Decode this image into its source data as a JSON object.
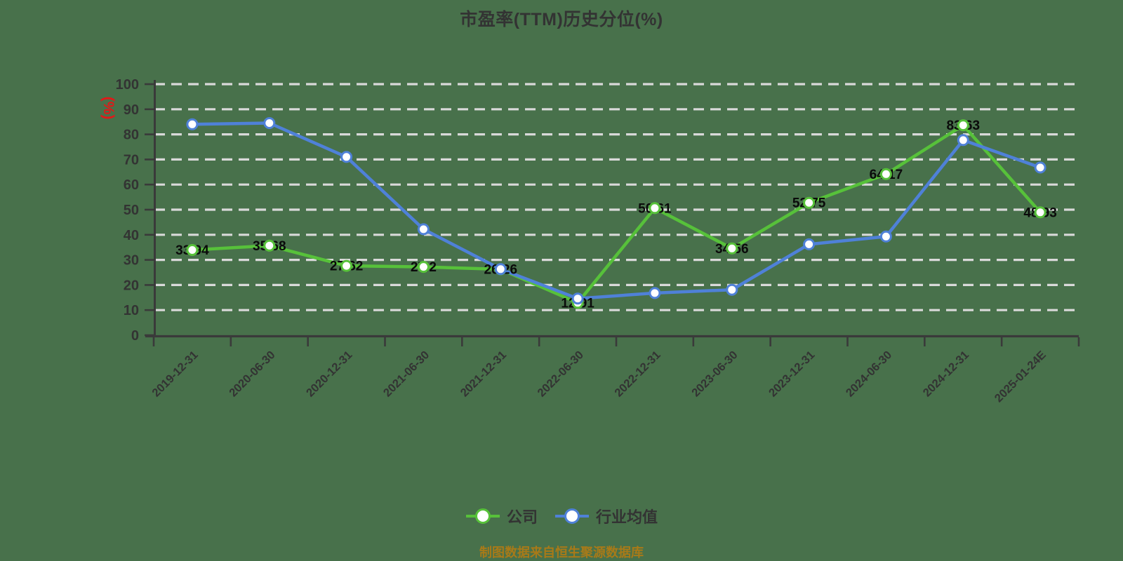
{
  "chart_data": {
    "type": "line",
    "title": "市盈率(TTM)历史分位(%)",
    "ylabel": "(%)",
    "xlabel": "",
    "source_note": "制图数据来自恒生聚源数据库",
    "categories": [
      "2019-12-31",
      "2020-06-30",
      "2020-12-31",
      "2021-06-30",
      "2021-12-31",
      "2022-06-30",
      "2022-12-31",
      "2023-06-30",
      "2023-12-31",
      "2024-06-30",
      "2024-12-31",
      "2025-01-24E"
    ],
    "series": [
      {
        "name": "公司",
        "color": "#57c13a",
        "show_labels": true,
        "values": [
          33.94,
          35.68,
          27.62,
          27.2,
          26.26,
          12.91,
          50.61,
          34.56,
          52.75,
          64.17,
          83.63,
          48.93
        ]
      },
      {
        "name": "行业均值",
        "color": "#4f81d8",
        "show_labels": false,
        "values": [
          84.0,
          84.5,
          71.0,
          42.2,
          26.3,
          14.6,
          16.8,
          18.1,
          36.2,
          39.3,
          77.7,
          66.8
        ]
      }
    ],
    "ylim": [
      0,
      100
    ],
    "ytick_step": 10,
    "grid": "horizontal-dashed-white",
    "legend_position": "bottom-center",
    "marker": "white-circle-colored-ring",
    "background": "#48714b",
    "axis_color": "#3a3a3a",
    "grid_color": "#d9d9d9",
    "label_color": "#0a0a0a",
    "title_color": "#333333",
    "ylabel_color": "#e21818",
    "source_note_color": "#a87a18"
  }
}
